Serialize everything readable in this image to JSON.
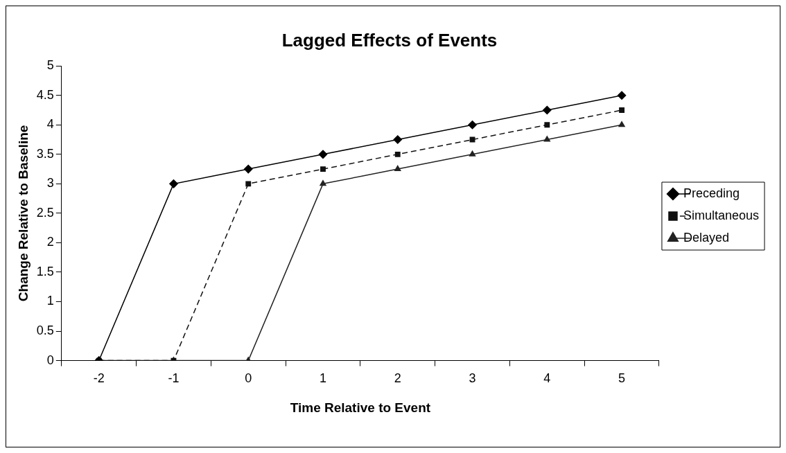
{
  "chart_data": {
    "type": "line",
    "title": "Lagged Effects of Events",
    "xlabel": "Time Relative to Event",
    "ylabel": "Change Relative to Baseline",
    "categories": [
      "-2",
      "-1",
      "0",
      "1",
      "2",
      "3",
      "4",
      "5"
    ],
    "series": [
      {
        "name": "Preceding",
        "color": "#000000",
        "marker": "diamond",
        "line_style": "solid",
        "values": [
          0,
          3,
          3.25,
          3.5,
          3.75,
          4,
          4.25,
          4.5
        ]
      },
      {
        "name": "Simultaneous",
        "color": "#111111",
        "marker": "square",
        "line_style": "dashed",
        "values": [
          0,
          0,
          3,
          3.25,
          3.5,
          3.75,
          4,
          4.25
        ]
      },
      {
        "name": "Delayed",
        "color": "#222222",
        "marker": "triangle",
        "line_style": "solid",
        "values": [
          0,
          0,
          0,
          3,
          3.25,
          3.5,
          3.75,
          4
        ]
      }
    ],
    "ylim": [
      0,
      5
    ],
    "yticks": [
      0,
      0.5,
      1,
      1.5,
      2,
      2.5,
      3,
      3.5,
      4,
      4.5,
      5
    ],
    "grid": false,
    "legend": "right"
  }
}
